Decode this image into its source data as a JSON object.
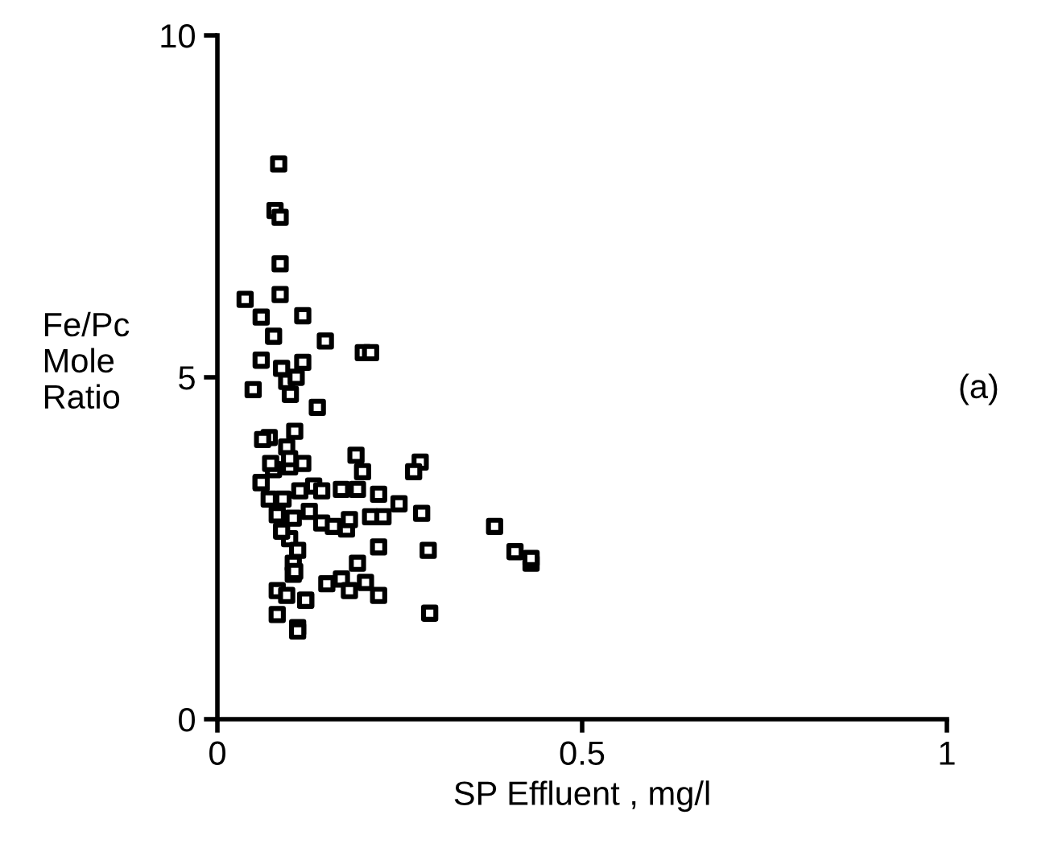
{
  "chart_data": {
    "type": "scatter",
    "xlabel": "SP Effluent , mg/l",
    "ylabel": "Fe/Pc\nMole\nRatio",
    "annotations": [
      "(a)"
    ],
    "x": [
      0.084,
      0.079,
      0.086,
      0.086,
      0.038,
      0.086,
      0.06,
      0.117,
      0.077,
      0.148,
      0.06,
      0.088,
      0.117,
      0.2,
      0.21,
      0.049,
      0.095,
      0.1,
      0.108,
      0.137,
      0.071,
      0.106,
      0.06,
      0.077,
      0.099,
      0.117,
      0.09,
      0.113,
      0.132,
      0.143,
      0.071,
      0.082,
      0.104,
      0.126,
      0.143,
      0.159,
      0.177,
      0.099,
      0.11,
      0.088,
      0.104,
      0.19,
      0.199,
      0.17,
      0.192,
      0.221,
      0.249,
      0.278,
      0.269,
      0.28,
      0.21,
      0.227,
      0.181,
      0.38,
      0.408,
      0.43,
      0.43,
      0.221,
      0.289,
      0.291,
      0.192,
      0.221,
      0.17,
      0.15,
      0.181,
      0.203,
      0.11,
      0.121,
      0.104,
      0.106,
      0.082,
      0.082,
      0.11,
      0.121,
      0.095,
      0.062,
      0.06,
      0.073,
      0.095,
      0.099
    ],
    "values": [
      8.12,
      7.44,
      7.34,
      6.66,
      6.14,
      6.21,
      5.88,
      5.9,
      5.6,
      5.53,
      5.25,
      5.13,
      5.22,
      5.36,
      5.36,
      4.82,
      4.94,
      4.75,
      5.0,
      4.56,
      4.12,
      4.21,
      3.46,
      3.65,
      3.69,
      3.74,
      3.22,
      3.34,
      3.41,
      3.34,
      3.22,
      2.99,
      2.94,
      3.04,
      2.87,
      2.82,
      2.78,
      2.64,
      2.47,
      2.75,
      2.28,
      3.86,
      3.62,
      3.36,
      3.36,
      3.29,
      3.15,
      3.76,
      3.62,
      3.01,
      2.96,
      2.96,
      2.92,
      2.82,
      2.45,
      2.28,
      2.35,
      2.52,
      2.47,
      1.55,
      2.28,
      1.81,
      2.05,
      1.98,
      1.88,
      2.0,
      1.34,
      1.74,
      2.12,
      2.16,
      1.88,
      1.53,
      1.29,
      1.74,
      1.81,
      4.09,
      3.46,
      3.74,
      3.98,
      3.81
    ],
    "color": "#000000",
    "marker": "square",
    "xlim": [
      0,
      1
    ],
    "ylim": [
      0,
      10
    ],
    "xticks": [
      0,
      0.5,
      1
    ],
    "yticks": [
      0,
      5,
      10
    ],
    "grid": false,
    "legend": false
  }
}
